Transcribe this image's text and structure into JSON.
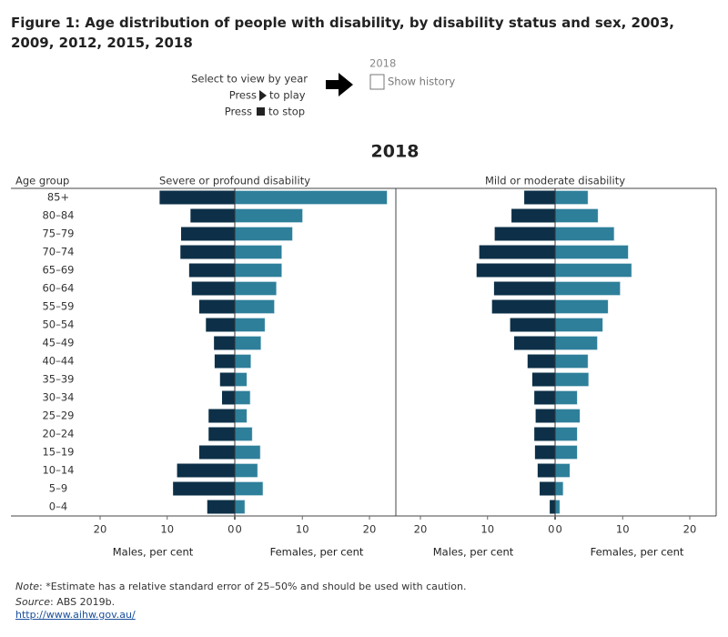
{
  "header": {
    "title": "Figure 1: Age distribution of people with disability, by disability status and sex, 2003, 2009, 2012, 2015, 2018"
  },
  "controls": {
    "instruction": "Select to view by year",
    "play_prefix": "Press",
    "play_suffix": "to play",
    "stop_prefix": "Press",
    "stop_suffix": "to stop",
    "year": "2018",
    "history": "Show history"
  },
  "chart_data": {
    "type": "pyramid",
    "title": "2018",
    "category_label": "Age group",
    "categories": [
      "85+",
      "80–84",
      "75–79",
      "70–74",
      "65–69",
      "60–64",
      "55–59",
      "50–54",
      "45–49",
      "40–44",
      "35–39",
      "30–34",
      "25–29",
      "20–24",
      "15–19",
      "10–14",
      "5–9",
      "0–4"
    ],
    "xlim": [
      0,
      24
    ],
    "xticks": [
      0,
      10,
      20
    ],
    "panels": [
      {
        "title": "Severe or profound disability",
        "series": [
          {
            "name": "Males, per cent",
            "color": "#0d3048",
            "values": [
              11.2,
              6.6,
              8.0,
              8.1,
              6.8,
              6.4,
              5.3,
              4.3,
              3.1,
              3.0,
              2.2,
              1.9,
              3.9,
              3.9,
              5.3,
              8.6,
              9.2,
              4.1
            ]
          },
          {
            "name": "Females, per cent",
            "color": "#2e7f9a",
            "values": [
              22.7,
              10.1,
              8.6,
              7.0,
              7.0,
              6.2,
              5.9,
              4.5,
              3.9,
              2.4,
              1.8,
              2.3,
              1.8,
              2.6,
              3.8,
              3.4,
              4.2,
              1.5
            ]
          }
        ]
      },
      {
        "title": "Mild or moderate disability",
        "series": [
          {
            "name": "Males, per cent",
            "color": "#0d3048",
            "values": [
              4.6,
              6.5,
              9.0,
              11.3,
              11.7,
              9.1,
              9.4,
              6.7,
              6.1,
              4.1,
              3.4,
              3.1,
              2.9,
              3.1,
              3.0,
              2.6,
              2.3,
              0.8
            ]
          },
          {
            "name": "Females, per cent",
            "color": "#2e7f9a",
            "values": [
              4.9,
              6.4,
              8.8,
              10.9,
              11.4,
              9.7,
              7.9,
              7.1,
              6.3,
              4.9,
              5.0,
              3.3,
              3.7,
              3.3,
              3.3,
              2.2,
              1.2,
              0.7
            ]
          }
        ]
      }
    ]
  },
  "footer": {
    "note_label": "Note",
    "note_text": ": *Estimate has a relative standard error of 25–50% and should be used with caution.",
    "source_label": "Source",
    "source_text": ": ABS 2019b.",
    "url": "http://www.aihw.gov.au/"
  }
}
